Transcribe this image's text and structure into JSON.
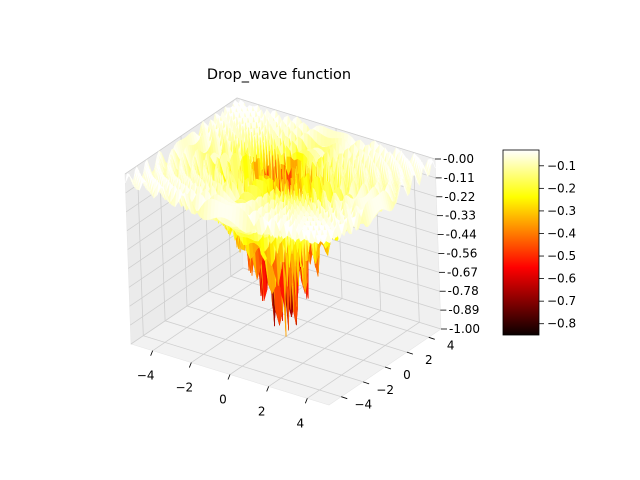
{
  "chart_data": {
    "type": "surface3d",
    "title": "Drop_wave function",
    "function": "-(1 + cos(12*sqrt(x^2+y^2))) / (0.5*(x^2+y^2) + 2)",
    "x_range": [
      -5.12,
      5.12
    ],
    "y_range": [
      -5.12,
      5.12
    ],
    "z_range": [
      -1.0,
      0.0
    ],
    "x_ticks": [
      "−4",
      "−2",
      "0",
      "2",
      "4"
    ],
    "y_ticks": [
      "−4",
      "−2",
      "0",
      "2",
      "4"
    ],
    "z_ticks": [
      "-0.00",
      "-0.11",
      "-0.22",
      "-0.33",
      "-0.44",
      "-0.56",
      "-0.67",
      "-0.78",
      "-0.89",
      "-1.00"
    ],
    "colormap": "hot",
    "colorbar_range": [
      -0.85,
      -0.03
    ],
    "colorbar_ticks": [
      "−0.1",
      "−0.2",
      "−0.3",
      "−0.4",
      "−0.5",
      "−0.6",
      "−0.7",
      "−0.8"
    ],
    "colorbar_tick_values": [
      -0.1,
      -0.2,
      -0.3,
      -0.4,
      -0.5,
      -0.6,
      -0.7,
      -0.8
    ],
    "grid": true,
    "pane_color": "#f2f2f2"
  }
}
